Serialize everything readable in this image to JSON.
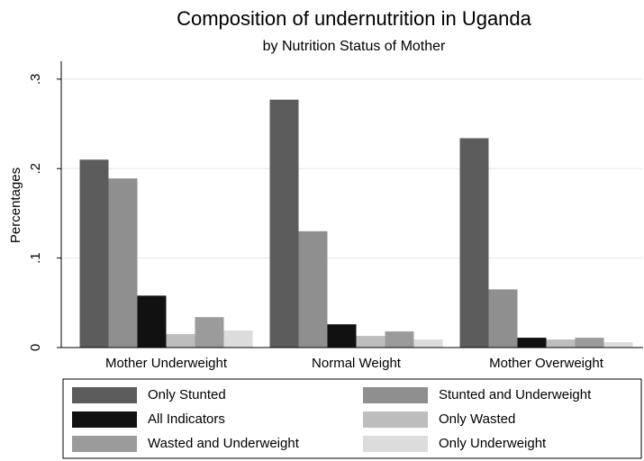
{
  "chart_data": {
    "type": "bar",
    "title": "Composition of undernutrition in Uganda",
    "subtitle": "by Nutrition Status of Mother",
    "y_label": "Percentages",
    "categories": [
      "Mother Underweight",
      "Normal Weight",
      "Mother Overweight"
    ],
    "series": [
      {
        "name": "Only Stunted",
        "color": "#5c5c5c",
        "values": [
          0.21,
          0.277,
          0.234
        ]
      },
      {
        "name": "Stunted and Underweight",
        "color": "#8f8f8f",
        "values": [
          0.189,
          0.13,
          0.065
        ]
      },
      {
        "name": "All Indicators",
        "color": "#111111",
        "values": [
          0.058,
          0.026,
          0.011
        ]
      },
      {
        "name": "Only Wasted",
        "color": "#bdbdbd",
        "values": [
          0.015,
          0.013,
          0.009
        ]
      },
      {
        "name": "Wasted and Underweight",
        "color": "#9b9b9b",
        "values": [
          0.034,
          0.018,
          0.011
        ]
      },
      {
        "name": "Only Underweight",
        "color": "#dcdcdc",
        "values": [
          0.019,
          0.009,
          0.006
        ]
      }
    ],
    "ylim": [
      0,
      0.32
    ],
    "yticks": [
      0,
      {
        "value": 0.1,
        "label": ".1"
      },
      {
        "value": 0.2,
        "label": ".2"
      },
      {
        "value": 0.3,
        "label": ".3"
      }
    ],
    "grid": true
  }
}
